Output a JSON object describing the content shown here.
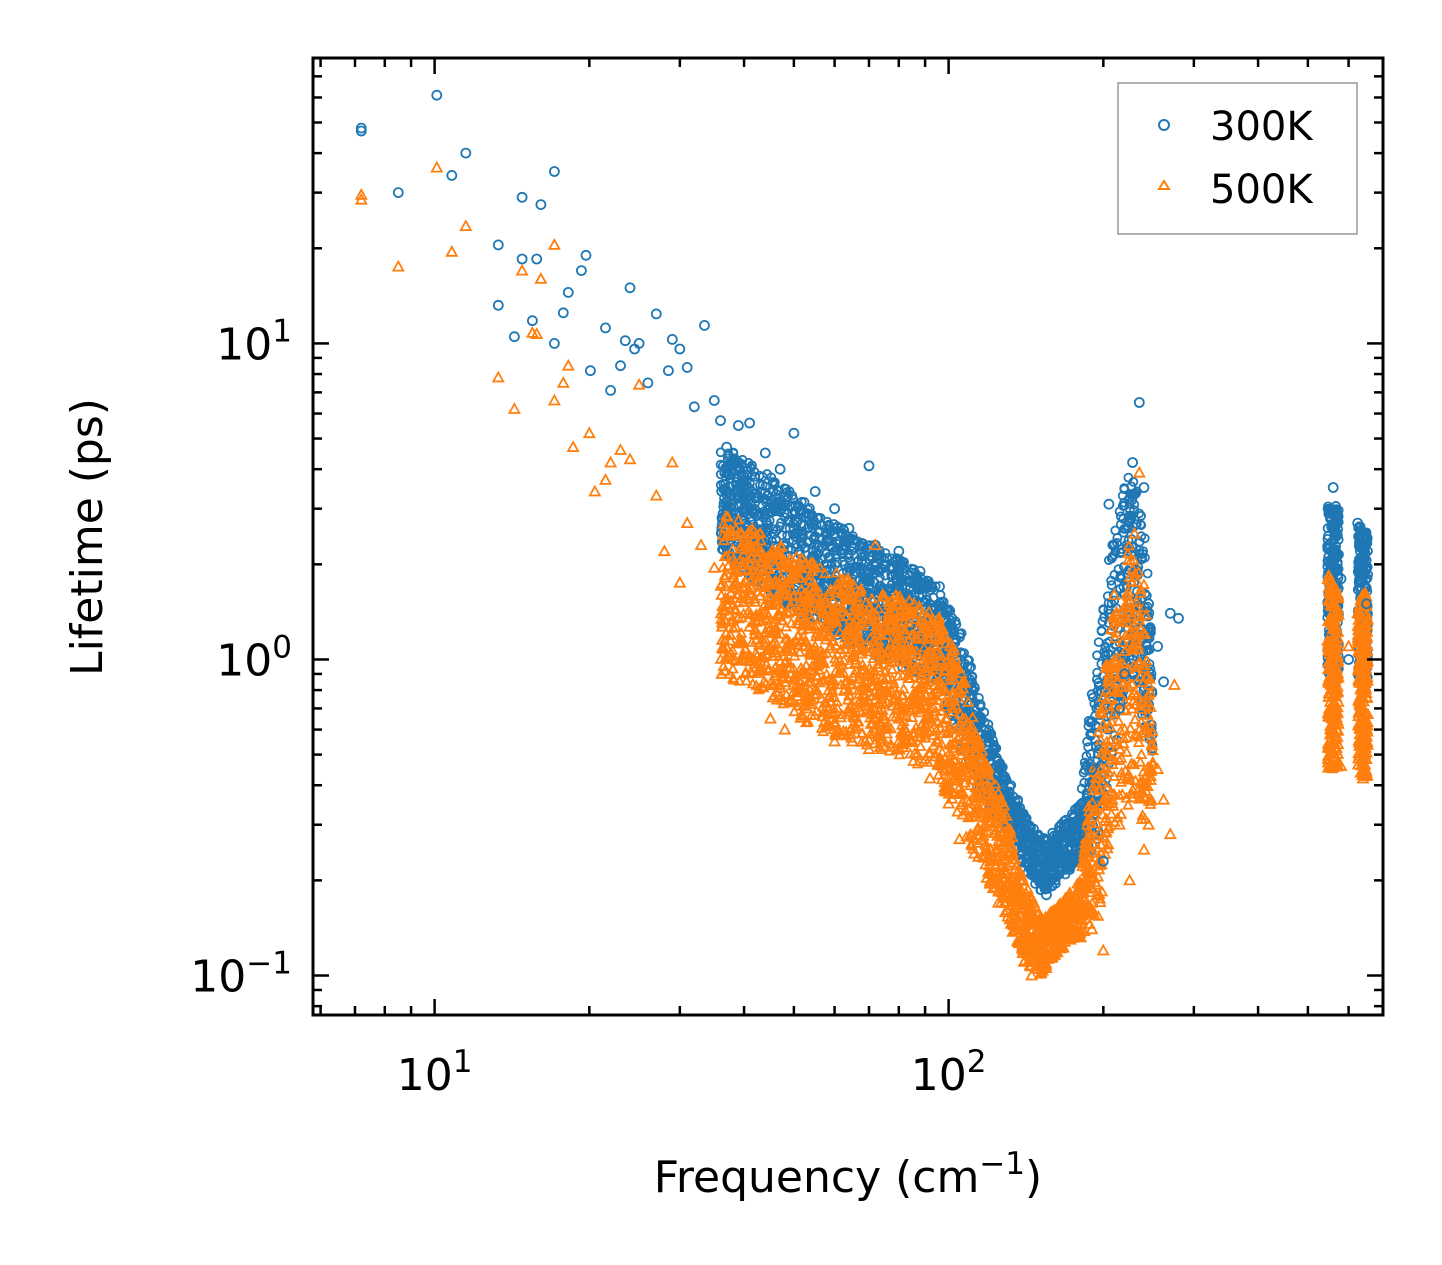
{
  "chart_data": {
    "type": "scatter",
    "title": "",
    "xlabel": "Frequency (cm",
    "xlabel_sup": "−1",
    "xlabel_suffix": ")",
    "ylabel": "Lifetime (ps)",
    "xscale": "log",
    "yscale": "log",
    "xlim": [
      5.8,
      700
    ],
    "ylim": [
      0.075,
      80
    ],
    "x_major_ticks": [
      {
        "value": 10,
        "base": "10",
        "exp": "1"
      },
      {
        "value": 100,
        "base": "10",
        "exp": "2"
      }
    ],
    "y_major_ticks": [
      {
        "value": 0.1,
        "base": "10",
        "exp": "−1"
      },
      {
        "value": 1,
        "base": "10",
        "exp": "0"
      },
      {
        "value": 10,
        "base": "10",
        "exp": "1"
      }
    ],
    "legend": {
      "position": "top-right"
    },
    "series": [
      {
        "name": "300K",
        "marker": "circle",
        "color": "#1f77b4",
        "points": [
          [
            7.2,
            48
          ],
          [
            7.2,
            47
          ],
          [
            8.5,
            30
          ],
          [
            10.1,
            61
          ],
          [
            10.8,
            34
          ],
          [
            11.5,
            40
          ],
          [
            13.3,
            20.5
          ],
          [
            13.3,
            13.2
          ],
          [
            14.3,
            10.5
          ],
          [
            14.8,
            29
          ],
          [
            14.8,
            18.5
          ],
          [
            15.5,
            11.8
          ],
          [
            15.8,
            18.5
          ],
          [
            16.1,
            27.5
          ],
          [
            17.1,
            35
          ],
          [
            17.1,
            10
          ],
          [
            17.8,
            12.5
          ],
          [
            18.2,
            14.5
          ],
          [
            19.3,
            17
          ],
          [
            19.7,
            19
          ],
          [
            20.1,
            8.2
          ],
          [
            21.5,
            11.2
          ],
          [
            22,
            7.1
          ],
          [
            23,
            8.5
          ],
          [
            23.5,
            10.2
          ],
          [
            24,
            15
          ],
          [
            24.5,
            9.6
          ],
          [
            25,
            10
          ],
          [
            26,
            7.5
          ],
          [
            27,
            12.4
          ],
          [
            28.5,
            8.2
          ],
          [
            29,
            10.3
          ],
          [
            30,
            9.6
          ],
          [
            31,
            8.4
          ],
          [
            32,
            6.3
          ],
          [
            33.5,
            11.4
          ],
          [
            35,
            6.6
          ],
          [
            36,
            5.7
          ],
          [
            37,
            4.7
          ],
          [
            39,
            5.5
          ],
          [
            41,
            5.6
          ],
          [
            44,
            4.5
          ],
          [
            47,
            4.0
          ],
          [
            50,
            5.2
          ],
          [
            55,
            3.4
          ],
          [
            60,
            3.0
          ],
          [
            64,
            2.6
          ],
          [
            70,
            4.1
          ],
          [
            72,
            2.3
          ],
          [
            80,
            2.2
          ],
          [
            88,
            1.9
          ],
          [
            96,
            1.7
          ],
          [
            105,
            1.2
          ],
          [
            115,
            0.72
          ],
          [
            125,
            0.43
          ],
          [
            135,
            0.33
          ],
          [
            145,
            0.25
          ],
          [
            150,
            0.2
          ],
          [
            155,
            0.18
          ],
          [
            160,
            0.21
          ],
          [
            170,
            0.25
          ],
          [
            180,
            0.28
          ],
          [
            190,
            0.45
          ],
          [
            200,
            0.23
          ],
          [
            205,
            3.1
          ],
          [
            210,
            1.6
          ],
          [
            215,
            0.7
          ],
          [
            220,
            0.9
          ],
          [
            228,
            4.2
          ],
          [
            235,
            6.5
          ],
          [
            240,
            3.5
          ],
          [
            245,
            1.5
          ],
          [
            255,
            1.1
          ],
          [
            262,
            0.85
          ],
          [
            270,
            1.4
          ],
          [
            280,
            1.35
          ],
          [
            560,
            3.5
          ],
          [
            570,
            2.5
          ],
          [
            580,
            1.8
          ],
          [
            600,
            1.0
          ],
          [
            625,
            2.7
          ],
          [
            640,
            2.0
          ],
          [
            650,
            1.5
          ]
        ]
      },
      {
        "name": "500K",
        "marker": "triangle",
        "color": "#ff7f0e",
        "points": [
          [
            7.2,
            28.5
          ],
          [
            7.2,
            29.5
          ],
          [
            8.5,
            17.5
          ],
          [
            10.1,
            36
          ],
          [
            10.8,
            19.5
          ],
          [
            11.5,
            23.5
          ],
          [
            13.3,
            7.8
          ],
          [
            14.3,
            6.2
          ],
          [
            14.8,
            17
          ],
          [
            15.5,
            10.8
          ],
          [
            15.8,
            10.7
          ],
          [
            16.1,
            16
          ],
          [
            17.1,
            20.5
          ],
          [
            17.1,
            6.6
          ],
          [
            17.8,
            7.5
          ],
          [
            18.2,
            8.5
          ],
          [
            18.6,
            4.7
          ],
          [
            20,
            5.2
          ],
          [
            20.5,
            3.4
          ],
          [
            21.5,
            3.7
          ],
          [
            22,
            4.2
          ],
          [
            23,
            4.6
          ],
          [
            24,
            4.3
          ],
          [
            25,
            7.4
          ],
          [
            27,
            3.3
          ],
          [
            28,
            2.2
          ],
          [
            29,
            4.2
          ],
          [
            30,
            1.75
          ],
          [
            31,
            2.7
          ],
          [
            33,
            2.3
          ],
          [
            35,
            1.95
          ],
          [
            37,
            1.5
          ],
          [
            39,
            1.35
          ],
          [
            42,
            0.97
          ],
          [
            45,
            0.65
          ],
          [
            48,
            0.6
          ],
          [
            50,
            2.0
          ],
          [
            55,
            0.8
          ],
          [
            60,
            0.55
          ],
          [
            65,
            0.55
          ],
          [
            70,
            0.52
          ],
          [
            72,
            2.3
          ],
          [
            80,
            0.65
          ],
          [
            85,
            0.55
          ],
          [
            92,
            0.42
          ],
          [
            100,
            0.35
          ],
          [
            105,
            0.27
          ],
          [
            110,
            0.5
          ],
          [
            118,
            0.25
          ],
          [
            125,
            0.17
          ],
          [
            133,
            0.2
          ],
          [
            140,
            0.12
          ],
          [
            145,
            0.1
          ],
          [
            150,
            0.11
          ],
          [
            160,
            0.13
          ],
          [
            170,
            0.16
          ],
          [
            180,
            0.19
          ],
          [
            190,
            0.14
          ],
          [
            200,
            0.12
          ],
          [
            205,
            0.35
          ],
          [
            210,
            1.6
          ],
          [
            215,
            0.3
          ],
          [
            220,
            0.6
          ],
          [
            225,
            0.2
          ],
          [
            230,
            2.5
          ],
          [
            235,
            3.9
          ],
          [
            240,
            0.25
          ],
          [
            245,
            0.3
          ],
          [
            255,
            0.45
          ],
          [
            262,
            0.36
          ],
          [
            270,
            0.28
          ],
          [
            275,
            0.83
          ],
          [
            560,
            1.7
          ],
          [
            570,
            0.6
          ],
          [
            580,
            0.46
          ],
          [
            600,
            1.1
          ],
          [
            625,
            1.4
          ],
          [
            640,
            0.42
          ],
          [
            650,
            0.6
          ]
        ]
      }
    ]
  }
}
